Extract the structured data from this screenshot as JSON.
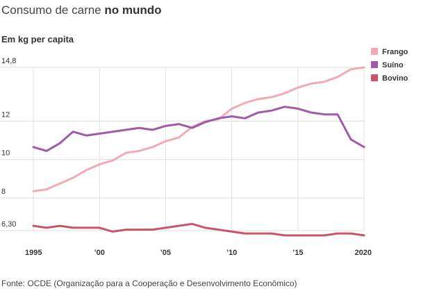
{
  "title": {
    "regular": "Consumo de carne",
    "bold": "no mundo"
  },
  "source": "Fonte: OCDE (Organização para a Cooperação e Desenvolvimento Econômico)",
  "chart_data": {
    "type": "line",
    "ylabel": "Em kg per capita",
    "x": [
      1995,
      1996,
      1997,
      1998,
      1999,
      2000,
      2001,
      2002,
      2003,
      2004,
      2005,
      2006,
      2007,
      2008,
      2009,
      2010,
      2011,
      2012,
      2013,
      2014,
      2015,
      2016,
      2017,
      2018,
      2019,
      2020
    ],
    "x_ticks": [
      {
        "value": 1995,
        "label": "1995"
      },
      {
        "value": 2000,
        "label": "’00"
      },
      {
        "value": 2005,
        "label": "’05"
      },
      {
        "value": 2010,
        "label": "’10"
      },
      {
        "value": 2015,
        "label": "’15"
      },
      {
        "value": 2020,
        "label": "2020"
      }
    ],
    "y_ticks": [
      {
        "value": 14.8,
        "label": "14,8"
      },
      {
        "value": 12,
        "label": "12"
      },
      {
        "value": 10,
        "label": "10"
      },
      {
        "value": 8,
        "label": "8"
      },
      {
        "value": 6.3,
        "label": "6,30"
      }
    ],
    "xlim": [
      1995,
      2020
    ],
    "ylim": [
      6.3,
      14.8
    ],
    "grid": true,
    "legend_position": "top-right",
    "series": [
      {
        "name": "Frango",
        "color": "#f2aab5",
        "values": [
          8.35,
          8.45,
          8.75,
          9.05,
          9.45,
          9.75,
          9.95,
          10.35,
          10.45,
          10.65,
          10.95,
          11.15,
          11.7,
          12.0,
          12.1,
          12.65,
          12.95,
          13.15,
          13.25,
          13.45,
          13.75,
          13.95,
          14.05,
          14.3,
          14.7,
          14.8
        ]
      },
      {
        "name": "Suíno",
        "color": "#a05aa8",
        "values": [
          10.65,
          10.45,
          10.85,
          11.45,
          11.25,
          11.35,
          11.45,
          11.55,
          11.65,
          11.55,
          11.75,
          11.85,
          11.65,
          11.95,
          12.15,
          12.25,
          12.15,
          12.45,
          12.55,
          12.75,
          12.65,
          12.45,
          12.35,
          12.35,
          11.05,
          10.65
        ]
      },
      {
        "name": "Bovino",
        "color": "#cc5468",
        "values": [
          6.55,
          6.45,
          6.55,
          6.45,
          6.45,
          6.45,
          6.25,
          6.35,
          6.35,
          6.35,
          6.45,
          6.55,
          6.65,
          6.45,
          6.35,
          6.25,
          6.15,
          6.15,
          6.15,
          6.05,
          6.05,
          6.05,
          6.05,
          6.15,
          6.15,
          6.05
        ]
      }
    ]
  }
}
